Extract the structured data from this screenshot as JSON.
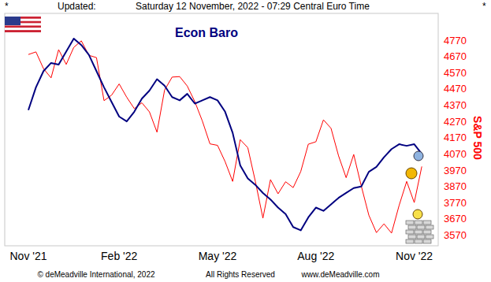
{
  "chart_data": {
    "type": "line",
    "title": "Econ Baro",
    "y_label": "S&P 500",
    "header": [
      "*",
      "Updated:",
      "Saturday 12 November, 2022 - 07:29 Central Euro Time",
      "*"
    ],
    "footer": [
      "© deMeadville International, 2022",
      "All Rights Reserved",
      "www.deMeadville.com"
    ],
    "categories": [
      "Nov '21",
      null,
      null,
      null,
      null,
      null,
      null,
      null,
      null,
      null,
      null,
      null,
      "Feb '22",
      null,
      null,
      null,
      null,
      null,
      null,
      null,
      null,
      null,
      null,
      null,
      null,
      "May '22",
      null,
      null,
      null,
      null,
      null,
      null,
      null,
      null,
      null,
      null,
      null,
      null,
      "Aug '22",
      null,
      null,
      null,
      null,
      null,
      null,
      null,
      null,
      null,
      null,
      null,
      null,
      "Nov '22",
      null
    ],
    "series": [
      {
        "color": "#000080",
        "values": [
          4340,
          4480,
          4580,
          4630,
          4620,
          4700,
          4780,
          4740,
          4680,
          4580,
          4480,
          4390,
          4300,
          4270,
          4330,
          4410,
          4460,
          4530,
          4490,
          4420,
          4400,
          4440,
          4380,
          4400,
          4420,
          4400,
          4330,
          4200,
          4000,
          3920,
          3880,
          3830,
          3790,
          3740,
          3700,
          3620,
          3600,
          3680,
          3740,
          3720,
          3760,
          3800,
          3830,
          3860,
          3870,
          3960,
          3990,
          4050,
          4100,
          4130,
          4120,
          4130,
          4070
        ]
      },
      {
        "color": "#ff0000",
        "values": [
          4682,
          4698,
          4595,
          4538,
          4712,
          4621,
          4726,
          4766,
          4677,
          4663,
          4398,
          4432,
          4501,
          4419,
          4349,
          4385,
          4329,
          4204,
          4463,
          4543,
          4546,
          4488,
          4392,
          4272,
          4132,
          4123,
          4023,
          3901,
          4158,
          4109,
          3901,
          3675,
          3912,
          3825,
          3899,
          3863,
          3962,
          4130,
          4145,
          4280,
          4228,
          4058,
          3924,
          4067,
          3873,
          3693,
          3586,
          3640,
          3583,
          3753,
          3901,
          3771,
          3993
        ]
      }
    ],
    "ylim": [
      3505,
      4935
    ],
    "yticks": [
      3570,
      3670,
      3770,
      3870,
      3970,
      4070,
      4170,
      4270,
      4370,
      4470,
      4570,
      4670,
      4770
    ],
    "grid": false
  }
}
